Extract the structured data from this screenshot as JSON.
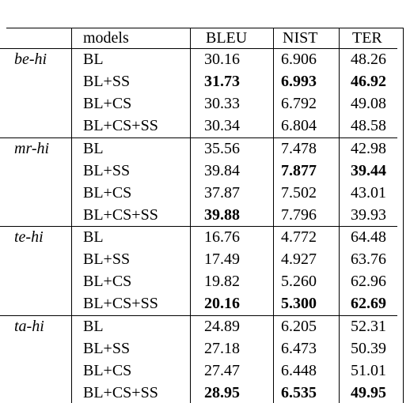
{
  "table": {
    "header": [
      "models",
      "BLEU",
      "NIST",
      "TER"
    ],
    "groups": [
      {
        "pair": "be-hi",
        "rows": [
          {
            "cells": [
              "BL",
              "30.16",
              "6.906",
              "48.26"
            ],
            "bold": [
              false,
              false,
              false,
              false
            ]
          },
          {
            "cells": [
              "BL+SS",
              "31.73",
              "6.993",
              "46.92"
            ],
            "bold": [
              false,
              true,
              true,
              true
            ]
          },
          {
            "cells": [
              "BL+CS",
              "30.33",
              "6.792",
              "49.08"
            ],
            "bold": [
              false,
              false,
              false,
              false
            ]
          },
          {
            "cells": [
              "BL+CS+SS",
              "30.34",
              "6.804",
              "48.58"
            ],
            "bold": [
              false,
              false,
              false,
              false
            ]
          }
        ]
      },
      {
        "pair": "mr-hi",
        "rows": [
          {
            "cells": [
              "BL",
              "35.56",
              "7.478",
              "42.98"
            ],
            "bold": [
              false,
              false,
              false,
              false
            ]
          },
          {
            "cells": [
              "BL+SS",
              "39.84",
              "7.877",
              "39.44"
            ],
            "bold": [
              false,
              false,
              true,
              true
            ]
          },
          {
            "cells": [
              "BL+CS",
              "37.87",
              "7.502",
              "43.01"
            ],
            "bold": [
              false,
              false,
              false,
              false
            ]
          },
          {
            "cells": [
              "BL+CS+SS",
              "39.88",
              "7.796",
              "39.93"
            ],
            "bold": [
              false,
              true,
              false,
              false
            ]
          }
        ]
      },
      {
        "pair": "te-hi",
        "rows": [
          {
            "cells": [
              "BL",
              "16.76",
              "4.772",
              "64.48"
            ],
            "bold": [
              false,
              false,
              false,
              false
            ]
          },
          {
            "cells": [
              "BL+SS",
              "17.49",
              "4.927",
              "63.76"
            ],
            "bold": [
              false,
              false,
              false,
              false
            ]
          },
          {
            "cells": [
              "BL+CS",
              "19.82",
              "5.260",
              "62.96"
            ],
            "bold": [
              false,
              false,
              false,
              false
            ]
          },
          {
            "cells": [
              "BL+CS+SS",
              "20.16",
              "5.300",
              "62.69"
            ],
            "bold": [
              false,
              true,
              true,
              true
            ]
          }
        ]
      },
      {
        "pair": "ta-hi",
        "rows": [
          {
            "cells": [
              "BL",
              "24.89",
              "6.205",
              "52.31"
            ],
            "bold": [
              false,
              false,
              false,
              false
            ]
          },
          {
            "cells": [
              "BL+SS",
              "27.18",
              "6.473",
              "50.39"
            ],
            "bold": [
              false,
              false,
              false,
              false
            ]
          },
          {
            "cells": [
              "BL+CS",
              "27.47",
              "6.448",
              "51.01"
            ],
            "bold": [
              false,
              false,
              false,
              false
            ]
          },
          {
            "cells": [
              "BL+CS+SS",
              "28.95",
              "6.535",
              "49.95"
            ],
            "bold": [
              false,
              true,
              true,
              true
            ]
          }
        ]
      }
    ]
  }
}
